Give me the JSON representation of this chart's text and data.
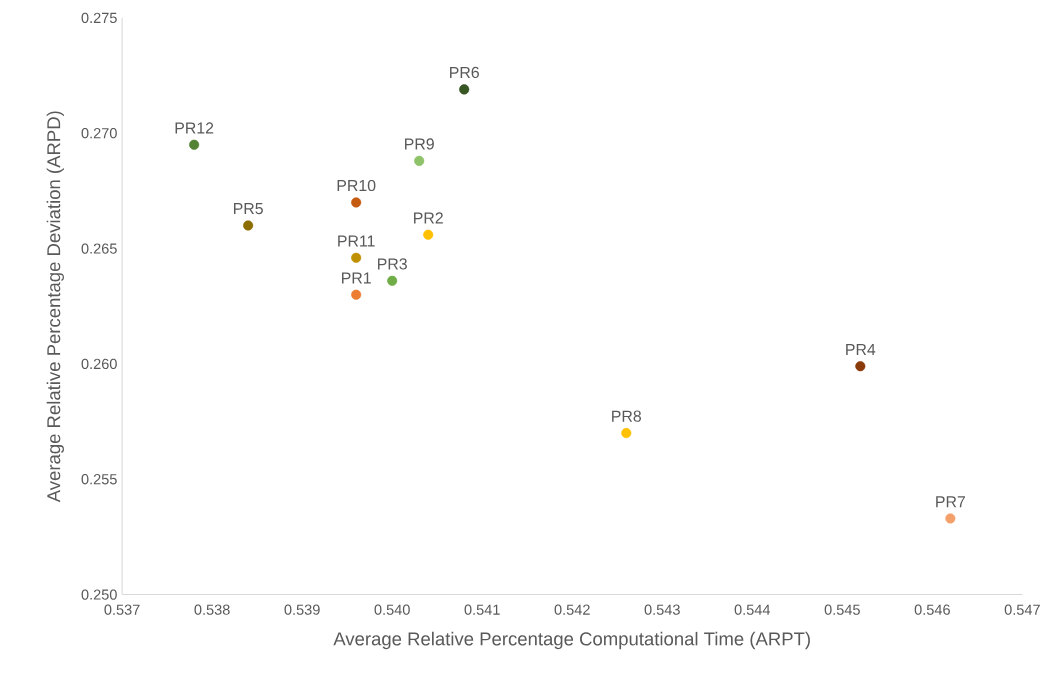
{
  "chart_data": {
    "type": "scatter",
    "xlabel": "Average Relative Percentage Computational Time (ARPT)",
    "ylabel": "Average Relative Percentage Deviation (ARPD)",
    "xlim": [
      0.537,
      0.547
    ],
    "ylim": [
      0.25,
      0.275
    ],
    "xticks": [
      0.537,
      0.538,
      0.539,
      {
        "value": 0.54,
        "label": "0.540"
      },
      0.541,
      0.542,
      0.543,
      0.544,
      0.545,
      0.546,
      0.547
    ],
    "yticks": [
      {
        "value": 0.25,
        "label": "0.250"
      },
      0.255,
      {
        "value": 0.26,
        "label": "0.260"
      },
      0.265,
      {
        "value": 0.27,
        "label": "0.270"
      },
      0.275
    ],
    "grid": false,
    "legend": false,
    "marker": "circle",
    "series": [
      {
        "name": "PR1",
        "color": "#ed7d31",
        "x": [
          0.5396
        ],
        "values": [
          0.263
        ]
      },
      {
        "name": "PR2",
        "color": "#ffc000",
        "x": [
          0.5404
        ],
        "values": [
          0.2656
        ]
      },
      {
        "name": "PR3",
        "color": "#70ad47",
        "x": [
          0.54
        ],
        "values": [
          0.2636
        ]
      },
      {
        "name": "PR4",
        "color": "#8b3a0a",
        "x": [
          0.5452
        ],
        "values": [
          0.2599
        ]
      },
      {
        "name": "PR5",
        "color": "#8c6d00",
        "x": [
          0.5384
        ],
        "values": [
          0.266
        ]
      },
      {
        "name": "PR6",
        "color": "#375623",
        "x": [
          0.5408
        ],
        "values": [
          0.2719
        ]
      },
      {
        "name": "PR7",
        "color": "#f4a06a",
        "x": [
          0.5462
        ],
        "values": [
          0.2533
        ]
      },
      {
        "name": "PR8",
        "color": "#ffc000",
        "x": [
          0.5426
        ],
        "values": [
          0.257
        ]
      },
      {
        "name": "PR9",
        "color": "#8fc36a",
        "x": [
          0.5403
        ],
        "values": [
          0.2688
        ]
      },
      {
        "name": "PR10",
        "color": "#c55a11",
        "x": [
          0.5396
        ],
        "values": [
          0.267
        ]
      },
      {
        "name": "PR11",
        "color": "#bf9000",
        "x": [
          0.5396
        ],
        "values": [
          0.2646
        ]
      },
      {
        "name": "PR12",
        "color": "#548235",
        "x": [
          0.5378
        ],
        "values": [
          0.2695
        ]
      }
    ]
  }
}
